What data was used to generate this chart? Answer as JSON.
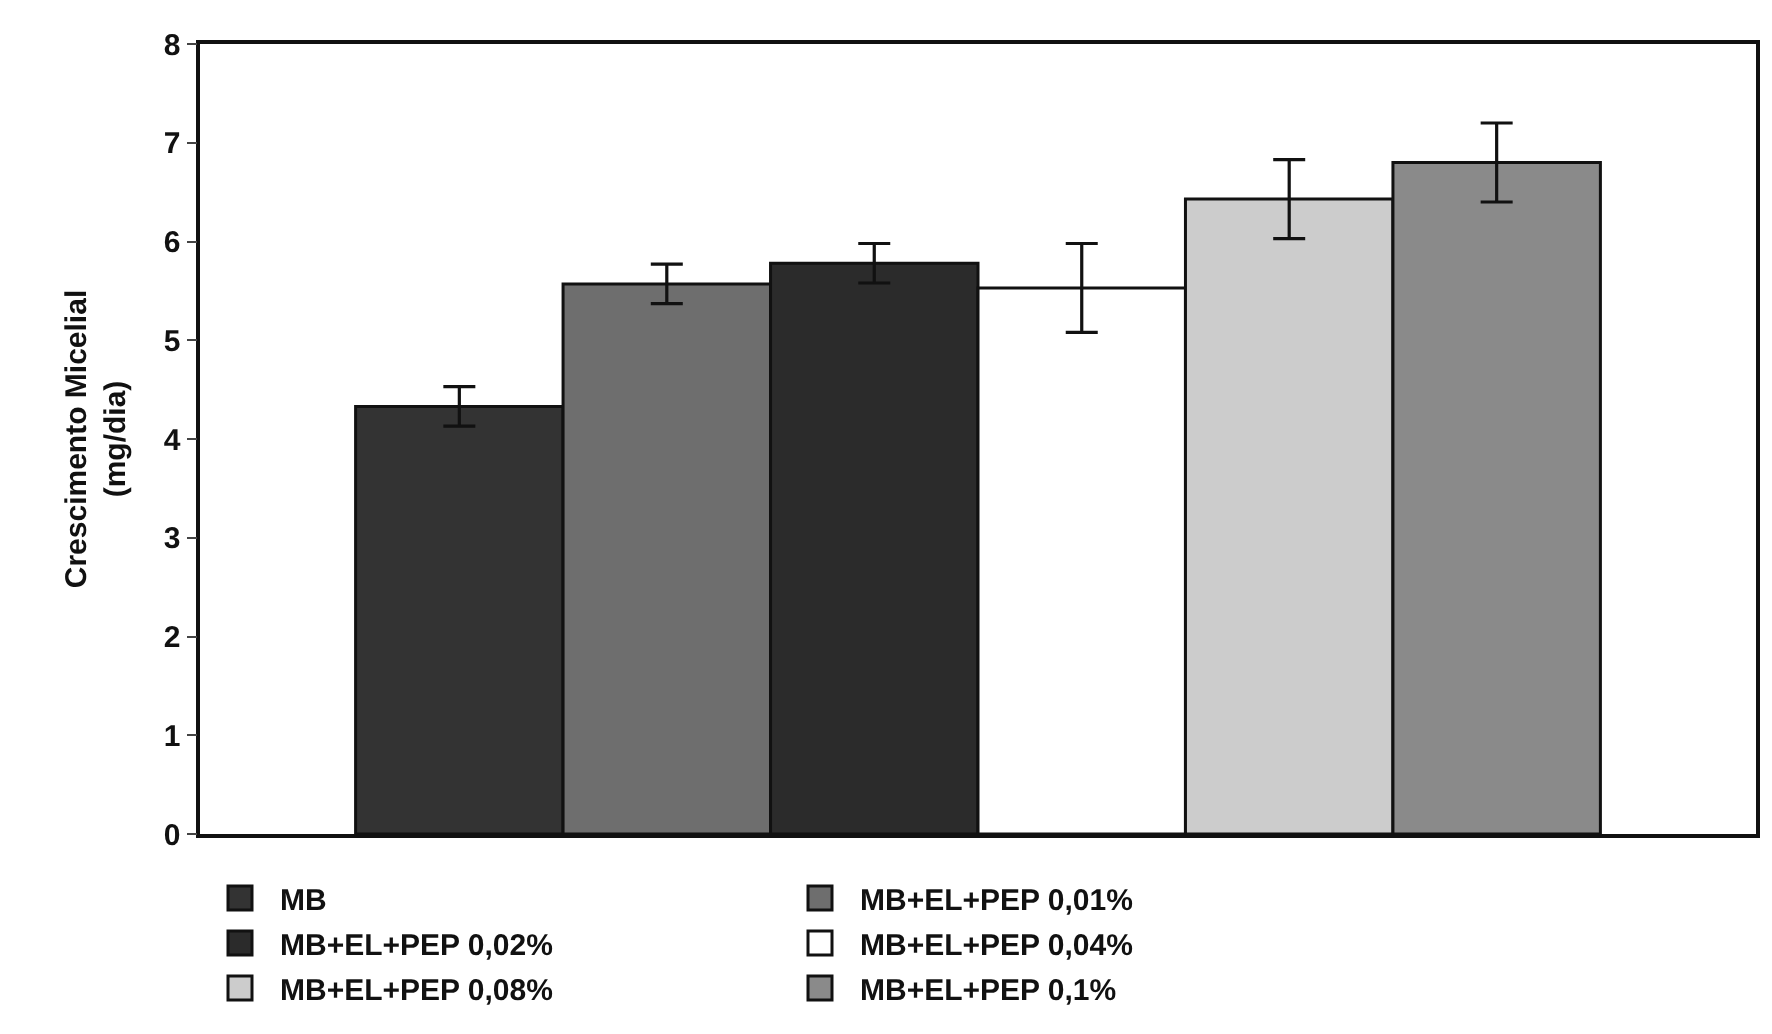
{
  "chart_data": {
    "type": "bar",
    "ylabel": "Crescimento Micelial\n(mg/dia)",
    "categories": [
      null
    ],
    "series": [
      {
        "name": "MB",
        "color": "#333333",
        "values": [
          4.33
        ],
        "errors": [
          0.2
        ]
      },
      {
        "name": "MB+EL+PEP 0,01%",
        "color": "#6e6e6e",
        "values": [
          5.57
        ],
        "errors": [
          0.2
        ]
      },
      {
        "name": "MB+EL+PEP 0,02%",
        "color": "#2b2b2b",
        "values": [
          5.78
        ],
        "errors": [
          0.2
        ]
      },
      {
        "name": "MB+EL+PEP 0,04%",
        "color": "#ffffff",
        "values": [
          5.53
        ],
        "errors": [
          0.45
        ]
      },
      {
        "name": "MB+EL+PEP 0,08%",
        "color": "#cccccc",
        "values": [
          6.43
        ],
        "errors": [
          0.4
        ]
      },
      {
        "name": "MB+EL+PEP 0,1%",
        "color": "#8a8a8a",
        "values": [
          6.8
        ],
        "errors": [
          0.4
        ]
      }
    ],
    "ylim": [
      0,
      8
    ],
    "yticks": [
      0,
      1,
      2,
      3,
      4,
      5,
      6,
      7,
      8
    ],
    "legend": "bottom",
    "tick_labels": "y"
  }
}
